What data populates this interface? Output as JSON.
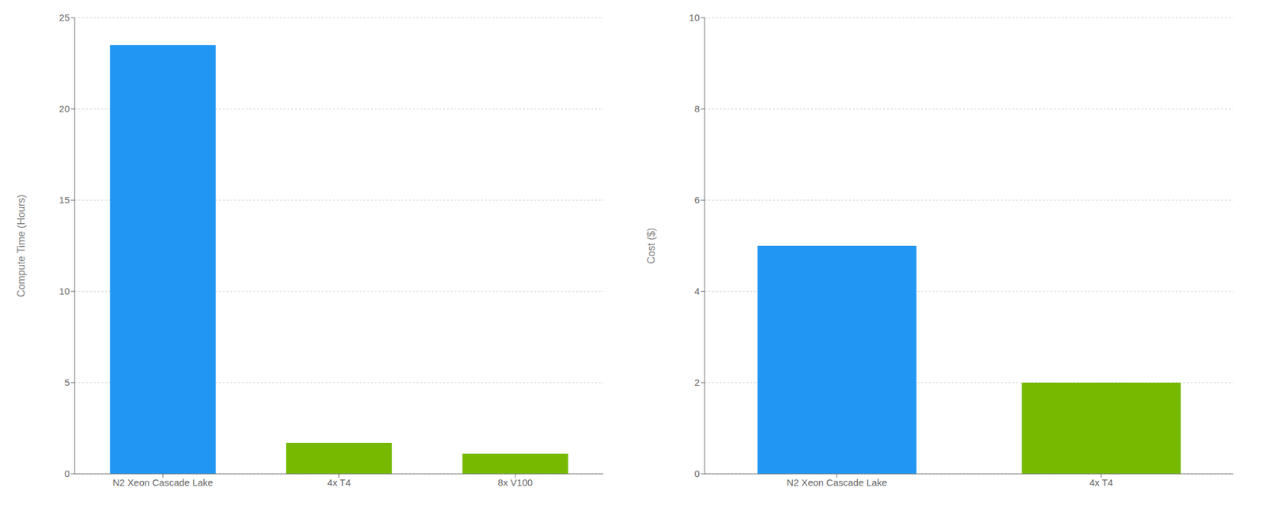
{
  "chart_data": [
    {
      "type": "bar",
      "ylabel": "Compute Time (Hours)",
      "categories": [
        "N2 Xeon Cascade Lake",
        "4x T4",
        "8x V100"
      ],
      "values": [
        23.5,
        1.7,
        1.1
      ],
      "colors": [
        "#2196F3",
        "#76B900",
        "#76B900"
      ],
      "ylim": [
        0,
        25
      ],
      "yticks": [
        0,
        5,
        10,
        15,
        20,
        25
      ],
      "grid": true
    },
    {
      "type": "bar",
      "ylabel": "Cost ($)",
      "categories": [
        "N2 Xeon Cascade Lake",
        "4x T4"
      ],
      "values": [
        5.0,
        2.0
      ],
      "colors": [
        "#2196F3",
        "#76B900"
      ],
      "ylim": [
        0,
        10
      ],
      "yticks": [
        0,
        2,
        4,
        6,
        8,
        10
      ],
      "grid": true
    }
  ]
}
